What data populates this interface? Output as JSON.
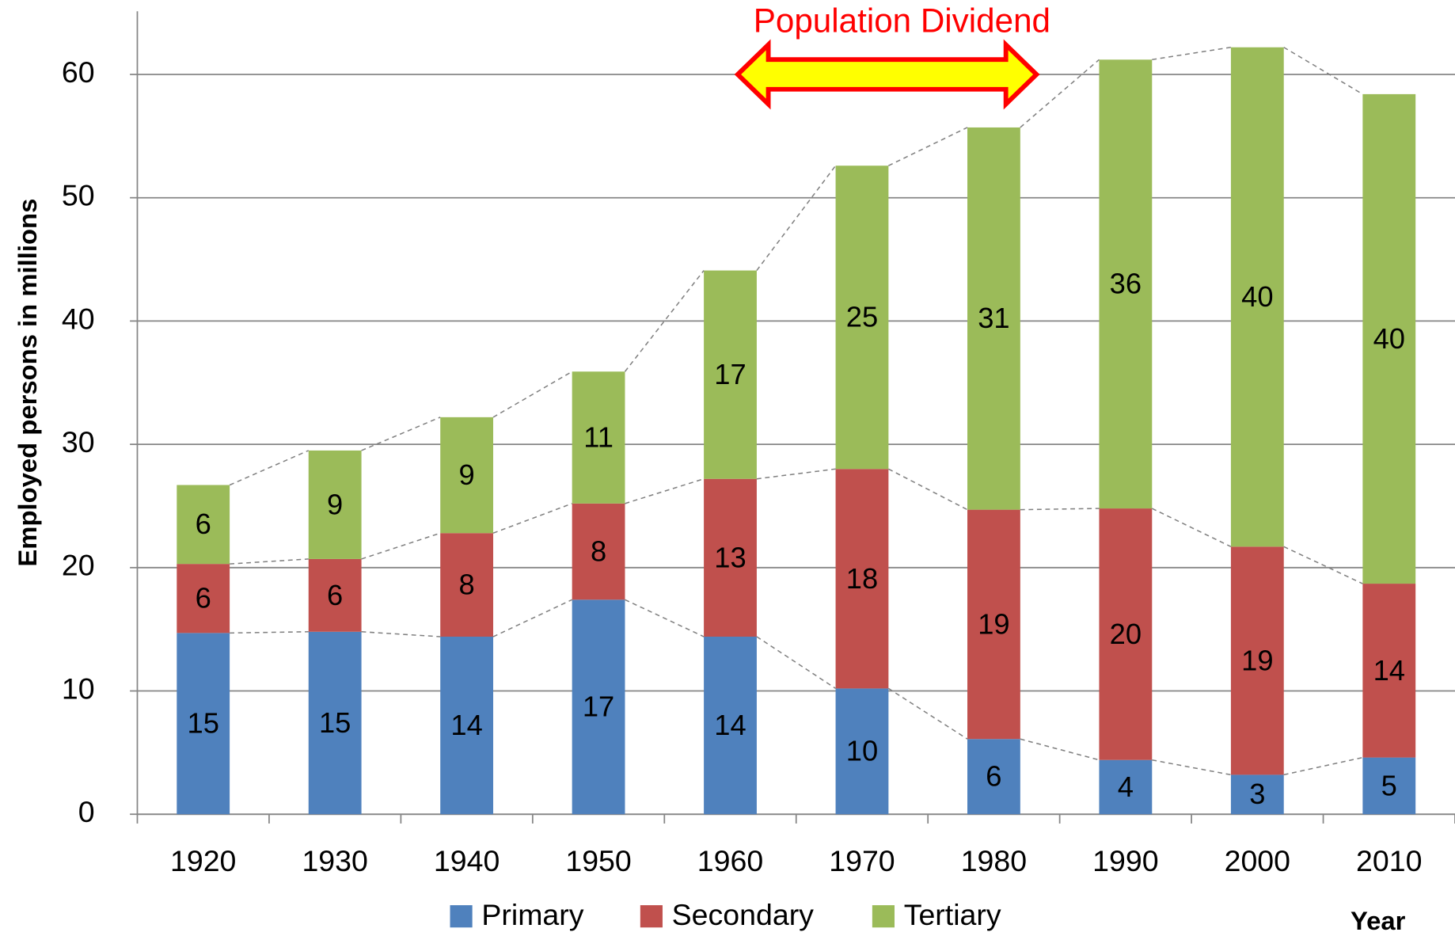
{
  "chart_data": {
    "type": "stacked_bar",
    "annotation": "Population Dividend",
    "y_label": "Employed persons in millions",
    "x_label": "Year",
    "categories": [
      "1920",
      "1930",
      "1940",
      "1950",
      "1960",
      "1970",
      "1980",
      "1990",
      "2000",
      "2010"
    ],
    "series": [
      {
        "name": "Primary",
        "color": "#4f81bd",
        "values": [
          14.7,
          14.8,
          14.4,
          17.4,
          14.4,
          10.2,
          6.1,
          4.4,
          3.2,
          4.6
        ],
        "value_labels": [
          "15",
          "15",
          "14",
          "17",
          "14",
          "10",
          "6",
          "4",
          "3",
          "5"
        ]
      },
      {
        "name": "Secondary",
        "color": "#c0504d",
        "values": [
          5.6,
          5.9,
          8.4,
          7.8,
          12.8,
          17.8,
          18.6,
          20.4,
          18.5,
          14.1
        ],
        "value_labels": [
          "6",
          "6",
          "8",
          "8",
          "13",
          "18",
          "19",
          "20",
          "19",
          "14"
        ]
      },
      {
        "name": "Tertiary",
        "color": "#9bbb59",
        "values": [
          6.4,
          8.8,
          9.4,
          10.7,
          16.9,
          24.6,
          31.0,
          36.4,
          40.5,
          39.7
        ],
        "value_labels": [
          "6",
          "9",
          "9",
          "11",
          "17",
          "25",
          "31",
          "36",
          "40",
          "40"
        ]
      }
    ],
    "ylim": [
      0,
      65
    ],
    "yticks": [
      0,
      10,
      20,
      30,
      40,
      50,
      60
    ],
    "grid": true,
    "legend": "bottom"
  }
}
